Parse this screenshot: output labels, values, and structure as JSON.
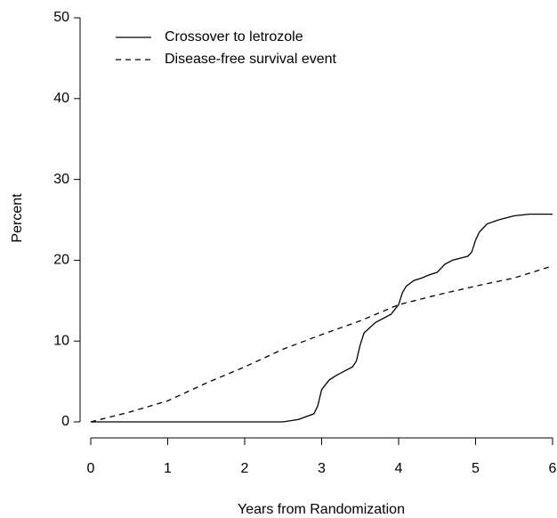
{
  "chart_data": {
    "type": "line",
    "xlabel": "Years from Randomization",
    "ylabel": "Percent",
    "xlim": [
      0,
      6
    ],
    "xticks": [
      0,
      1,
      2,
      3,
      4,
      5,
      6
    ],
    "ylim": [
      0,
      50
    ],
    "yticks": [
      0,
      10,
      20,
      30,
      40,
      50
    ],
    "grid": false,
    "legend": "upper left",
    "series": [
      {
        "name": "Crossover to letrozole",
        "color": "#000000",
        "linestyle": "solid",
        "x": [
          0,
          2.5,
          2.7,
          2.9,
          2.95,
          3.0,
          3.1,
          3.2,
          3.3,
          3.4,
          3.45,
          3.5,
          3.55,
          3.7,
          3.9,
          4.0,
          4.05,
          4.1,
          4.2,
          4.3,
          4.4,
          4.5,
          4.6,
          4.7,
          4.9,
          4.95,
          5.0,
          5.05,
          5.15,
          5.3,
          5.5,
          5.7,
          6.0
        ],
        "values": [
          0,
          0,
          0.3,
          1,
          2,
          4,
          5.2,
          5.8,
          6.3,
          6.8,
          7.5,
          9.5,
          11,
          12.3,
          13.3,
          14.5,
          16,
          16.8,
          17.5,
          17.8,
          18.2,
          18.5,
          19.5,
          20,
          20.5,
          21,
          22.5,
          23.5,
          24.5,
          25,
          25.5,
          25.7,
          25.7
        ]
      },
      {
        "name": "Disease-free survival event",
        "color": "#000000",
        "linestyle": "dashed",
        "x": [
          0,
          0.5,
          1,
          1.5,
          2,
          2.5,
          3,
          3.5,
          4,
          4.5,
          5,
          5.5,
          6
        ],
        "values": [
          0,
          1.2,
          2.6,
          4.8,
          6.8,
          9,
          10.8,
          12.5,
          14.5,
          15.7,
          16.8,
          17.8,
          19.3
        ]
      }
    ]
  }
}
